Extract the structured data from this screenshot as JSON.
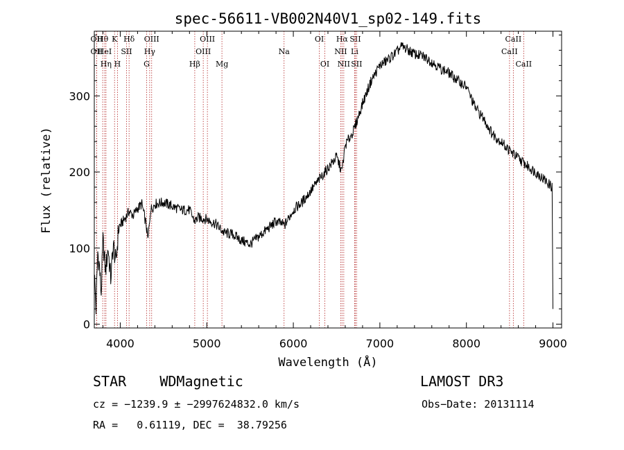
{
  "chart_data": {
    "type": "line",
    "title": "spec-56611-VB002N40V1_sp02-149.fits",
    "xlabel": "Wavelength (Å)",
    "ylabel": "Flux (relative)",
    "xlim": [
      3700,
      9100
    ],
    "ylim": [
      -5,
      385
    ],
    "x_ticks": [
      4000,
      5000,
      6000,
      7000,
      8000,
      9000
    ],
    "y_ticks": [
      0,
      100,
      200,
      300
    ],
    "grid": false,
    "series": [
      {
        "name": "flux",
        "color": "#000000",
        "x": [
          3700,
          3720,
          3740,
          3760,
          3780,
          3800,
          3830,
          3860,
          3890,
          3920,
          3950,
          3980,
          4000,
          4050,
          4100,
          4150,
          4200,
          4250,
          4300,
          4320,
          4350,
          4400,
          4500,
          4600,
          4700,
          4800,
          4860,
          4900,
          5000,
          5100,
          5200,
          5300,
          5400,
          5500,
          5600,
          5700,
          5800,
          5900,
          6000,
          6100,
          6200,
          6300,
          6400,
          6500,
          6560,
          6600,
          6700,
          6800,
          6900,
          7000,
          7100,
          7200,
          7250,
          7300,
          7400,
          7500,
          7600,
          7700,
          7800,
          7900,
          8000,
          8100,
          8200,
          8300,
          8400,
          8500,
          8600,
          8700,
          8800,
          8900,
          8990,
          9000
        ],
        "y": [
          70,
          20,
          95,
          75,
          40,
          110,
          70,
          100,
          60,
          105,
          80,
          125,
          130,
          138,
          148,
          143,
          152,
          158,
          130,
          110,
          150,
          158,
          160,
          155,
          150,
          150,
          135,
          140,
          138,
          132,
          120,
          118,
          110,
          105,
          115,
          125,
          135,
          130,
          150,
          160,
          175,
          190,
          205,
          220,
          200,
          235,
          255,
          290,
          320,
          340,
          348,
          358,
          365,
          362,
          355,
          352,
          345,
          336,
          330,
          320,
          312,
          285,
          270,
          250,
          240,
          228,
          218,
          208,
          200,
          190,
          180,
          20
        ]
      }
    ],
    "line_markers": [
      {
        "label": "OII",
        "wavelength": 3727
      },
      {
        "label": "Hθ",
        "wavelength": 3797
      },
      {
        "label": "OII",
        "wavelength": 3727
      },
      {
        "label": "HeI",
        "wavelength": 3820
      },
      {
        "label": "Hη",
        "wavelength": 3835
      },
      {
        "label": "K",
        "wavelength": 3934
      },
      {
        "label": "SII",
        "wavelength": 4072
      },
      {
        "label": "H",
        "wavelength": 3968
      },
      {
        "label": "Hδ",
        "wavelength": 4102
      },
      {
        "label": "OIII",
        "wavelength": 4363
      },
      {
        "label": "Hγ",
        "wavelength": 4340
      },
      {
        "label": "G",
        "wavelength": 4305
      },
      {
        "label": "OIII",
        "wavelength": 5007
      },
      {
        "label": "OIII",
        "wavelength": 4959
      },
      {
        "label": "Hβ",
        "wavelength": 4861
      },
      {
        "label": "Mg",
        "wavelength": 5175
      },
      {
        "label": "Na",
        "wavelength": 5893
      },
      {
        "label": "OI",
        "wavelength": 6300
      },
      {
        "label": "OI",
        "wavelength": 6364
      },
      {
        "label": "Hα",
        "wavelength": 6563
      },
      {
        "label": "NII",
        "wavelength": 6548
      },
      {
        "label": "NII",
        "wavelength": 6583
      },
      {
        "label": "SII",
        "wavelength": 6716
      },
      {
        "label": "Li",
        "wavelength": 6708
      },
      {
        "label": "SII",
        "wavelength": 6731
      },
      {
        "label": "CaII",
        "wavelength": 8542
      },
      {
        "label": "CaII",
        "wavelength": 8498
      },
      {
        "label": "CaII",
        "wavelength": 8662
      }
    ]
  },
  "info": {
    "class_label": "STAR    WDMagnetic",
    "survey": "LAMOST DR3",
    "cz_line": "cz = −1239.9 ± −2997624832.0 km/s",
    "obs_date": "Obs−Date: 20131114",
    "coords": "RA =   0.61119, DEC =  38.79256"
  }
}
